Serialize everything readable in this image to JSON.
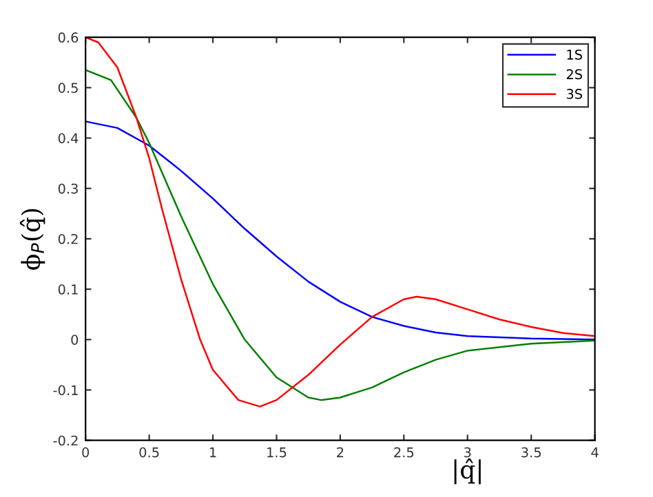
{
  "chart_data": {
    "type": "line",
    "xlabel": "|q̂|",
    "ylabel": "ϕ$_{P}$(q̂)",
    "xlim": [
      0,
      4
    ],
    "ylim": [
      -0.2,
      0.6
    ],
    "xticks": [
      0,
      0.5,
      1,
      1.5,
      2,
      2.5,
      3,
      3.5,
      4
    ],
    "yticks": [
      -0.2,
      -0.1,
      0,
      0.1,
      0.2,
      0.3,
      0.4,
      0.5,
      0.6
    ],
    "grid": false,
    "legend": "top right",
    "marker": "none",
    "line_style": "solid",
    "series": [
      {
        "name": "1S",
        "color": "#0000ff",
        "x": [
          0,
          0.25,
          0.5,
          0.75,
          1.0,
          1.25,
          1.5,
          1.75,
          2.0,
          2.25,
          2.5,
          2.75,
          3.0,
          3.5,
          4.0
        ],
        "values": [
          0.433,
          0.42,
          0.385,
          0.335,
          0.28,
          0.22,
          0.165,
          0.115,
          0.075,
          0.045,
          0.027,
          0.014,
          0.007,
          0.002,
          0.0
        ]
      },
      {
        "name": "2S",
        "color": "#008000",
        "x": [
          0,
          0.2,
          0.4,
          0.5,
          0.75,
          1.0,
          1.25,
          1.5,
          1.75,
          1.85,
          2.0,
          2.25,
          2.5,
          2.75,
          3.0,
          3.5,
          4.0
        ],
        "values": [
          0.535,
          0.515,
          0.44,
          0.39,
          0.245,
          0.11,
          0.0,
          -0.075,
          -0.115,
          -0.12,
          -0.115,
          -0.095,
          -0.065,
          -0.04,
          -0.022,
          -0.008,
          -0.002
        ]
      },
      {
        "name": "3S",
        "color": "#ff0000",
        "x": [
          0,
          0.1,
          0.25,
          0.4,
          0.5,
          0.6,
          0.75,
          0.9,
          1.0,
          1.2,
          1.37,
          1.5,
          1.75,
          2.0,
          2.25,
          2.5,
          2.6,
          2.75,
          3.0,
          3.25,
          3.5,
          3.75,
          4.0
        ],
        "values": [
          0.6,
          0.59,
          0.54,
          0.44,
          0.36,
          0.26,
          0.12,
          0.0,
          -0.06,
          -0.12,
          -0.133,
          -0.12,
          -0.07,
          -0.01,
          0.045,
          0.08,
          0.085,
          0.08,
          0.06,
          0.04,
          0.025,
          0.013,
          0.007
        ]
      }
    ]
  }
}
